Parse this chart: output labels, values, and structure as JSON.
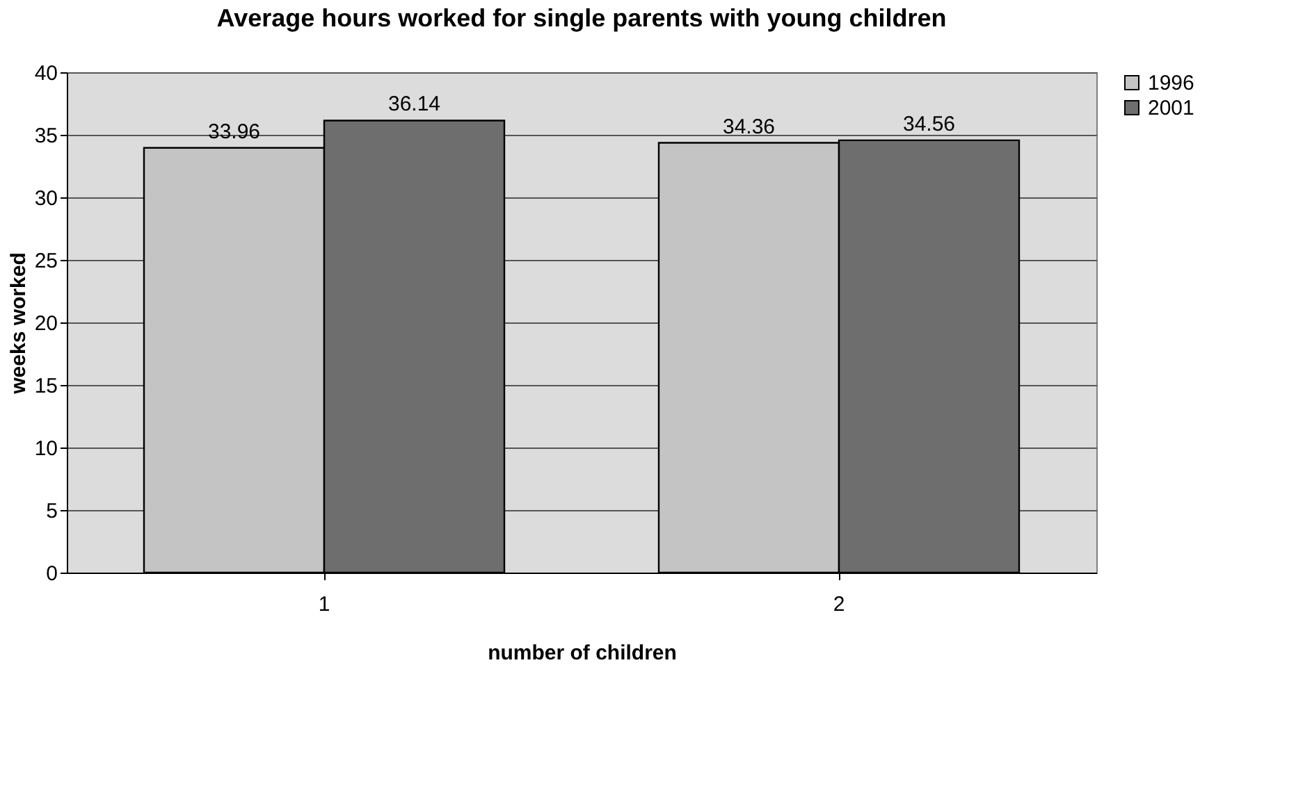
{
  "chart_data": {
    "type": "bar",
    "title": "Average hours worked for single parents with young children",
    "xlabel": "number of children",
    "ylabel": "weeks worked",
    "categories": [
      "1",
      "2"
    ],
    "series": [
      {
        "name": "1996",
        "color": "#c4c4c4",
        "values": [
          33.96,
          34.36
        ]
      },
      {
        "name": "2001",
        "color": "#6e6e6e",
        "values": [
          36.14,
          34.56
        ]
      }
    ],
    "ylim": [
      0,
      40
    ],
    "yticks": [
      0,
      5,
      10,
      15,
      20,
      25,
      30,
      35,
      40
    ],
    "grid": "y",
    "legend": "right",
    "data_labels": true
  }
}
